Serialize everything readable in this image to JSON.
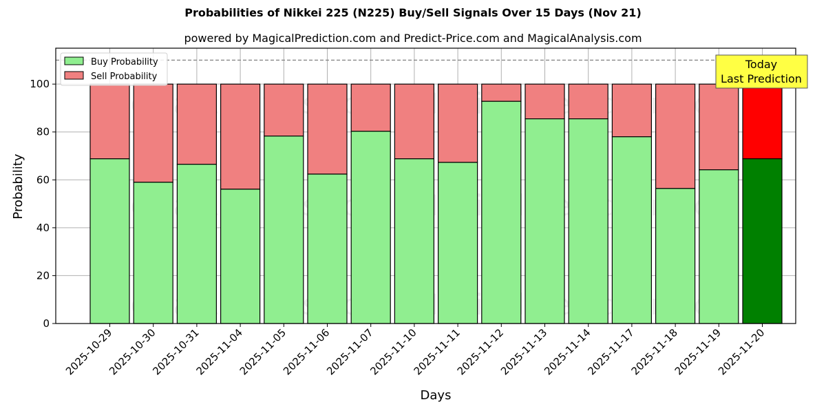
{
  "header": {
    "title": "Probabilities of Nikkei 225 (N225) Buy/Sell Signals Over 15 Days (Nov 21)",
    "subtitle": "powered by MagicalPrediction.com and Predict-Price.com and MagicalAnalysis.com"
  },
  "watermarks": [
    "MagicalAnalysis.com",
    "MagicalPrediction.com"
  ],
  "annotation": {
    "line1": "Today",
    "line2": "Last Prediction",
    "bg": "#ffff44"
  },
  "colors": {
    "buy": "#90ee90",
    "sell": "#f08080",
    "buy_today": "#008000",
    "sell_today": "#ff0000",
    "grid": "#b0b0b0"
  },
  "chart_data": {
    "type": "bar",
    "stacked": true,
    "title": "Probabilities of Nikkei 225 (N225) Buy/Sell Signals Over 15 Days (Nov 21)",
    "subtitle": "powered by MagicalPrediction.com and Predict-Price.com and MagicalAnalysis.com",
    "xlabel": "Days",
    "ylabel": "Probability",
    "ylim": [
      0,
      115
    ],
    "yticks": [
      0,
      20,
      40,
      60,
      80,
      100
    ],
    "grid": true,
    "legend_position": "upper left",
    "reference_line": {
      "y": 110,
      "style": "dashed"
    },
    "categories": [
      "2025-10-29",
      "2025-10-30",
      "2025-10-31",
      "2025-11-04",
      "2025-11-05",
      "2025-11-06",
      "2025-11-07",
      "2025-11-10",
      "2025-11-11",
      "2025-11-12",
      "2025-11-13",
      "2025-11-14",
      "2025-11-17",
      "2025-11-18",
      "2025-11-19",
      "2025-11-20"
    ],
    "series": [
      {
        "name": "Buy Probability",
        "values": [
          68.8,
          59.0,
          66.5,
          56.1,
          78.3,
          62.4,
          80.3,
          68.8,
          67.3,
          92.8,
          85.5,
          85.5,
          78.0,
          56.4,
          64.2,
          68.8
        ]
      },
      {
        "name": "Sell Probability",
        "values": [
          31.2,
          41.0,
          33.5,
          43.9,
          21.7,
          37.6,
          19.7,
          31.2,
          32.7,
          7.2,
          14.5,
          14.5,
          22.0,
          43.6,
          35.8,
          31.2
        ]
      }
    ],
    "highlight": {
      "category": "2025-11-20",
      "label": "Today Last Prediction"
    }
  }
}
